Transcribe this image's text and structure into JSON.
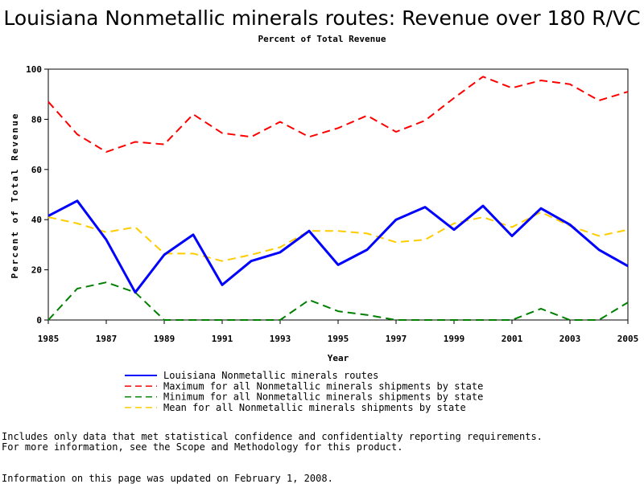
{
  "chart_data": {
    "type": "line",
    "title": "Louisiana Nonmetallic minerals routes: Revenue over 180 R/VC",
    "subtitle": "Percent of Total Revenue",
    "xlabel": "Year",
    "ylabel": "Percent of Total Revenue",
    "xlim": [
      1985,
      2005
    ],
    "ylim": [
      0,
      100
    ],
    "x_ticks": [
      "1985",
      "1987",
      "1989",
      "1991",
      "1993",
      "1995",
      "1997",
      "1999",
      "2001",
      "2003",
      "2005"
    ],
    "y_ticks": [
      "0",
      "20",
      "40",
      "60",
      "80",
      "100"
    ],
    "grid": false,
    "legend_position": "bottom",
    "x": [
      1985,
      1986,
      1987,
      1988,
      1989,
      1990,
      1991,
      1992,
      1993,
      1994,
      1995,
      1996,
      1997,
      1998,
      1999,
      2000,
      2001,
      2002,
      2003,
      2004,
      2005
    ],
    "series": [
      {
        "name": "Louisiana Nonmetallic minerals routes",
        "color": "#0000ff",
        "style": "solid",
        "values": [
          41.5,
          47.5,
          32,
          11,
          26,
          34,
          14,
          23.5,
          27,
          35.5,
          22,
          28,
          40,
          45,
          36,
          45.5,
          33.5,
          44.5,
          38,
          28,
          21.5
        ]
      },
      {
        "name": "Maximum for all Nonmetallic minerals shipments by state",
        "color": "#ff0000",
        "style": "dashed",
        "values": [
          87,
          74,
          67,
          71,
          70,
          82,
          74.5,
          73,
          79,
          73,
          76.5,
          81.5,
          75,
          79.5,
          88.5,
          97,
          92.5,
          95.5,
          94,
          87.5,
          91
        ]
      },
      {
        "name": "Minimum for all Nonmetallic minerals shipments by state",
        "color": "#008000",
        "style": "dashed",
        "values": [
          0,
          12.5,
          15,
          11,
          0,
          0,
          0,
          0,
          0,
          8,
          3.5,
          2,
          0,
          0,
          0,
          0,
          0,
          4.5,
          0,
          0,
          7
        ]
      },
      {
        "name": "Mean for all Nonmetallic minerals shipments by state",
        "color": "#ffcc00",
        "style": "dashed",
        "values": [
          41,
          38.5,
          35,
          37,
          26.5,
          26.5,
          23.5,
          26,
          29,
          35.5,
          35.5,
          34.5,
          31,
          32,
          38.5,
          41,
          37,
          43,
          37.5,
          33.5,
          36
        ]
      }
    ]
  },
  "notes": {
    "line1": "Includes only data that met statistical confidence and confidentialty reporting requirements.",
    "line2": "For more information, see the Scope and Methodology for this product.",
    "updated": "Information on this page was updated on February 1, 2008."
  }
}
